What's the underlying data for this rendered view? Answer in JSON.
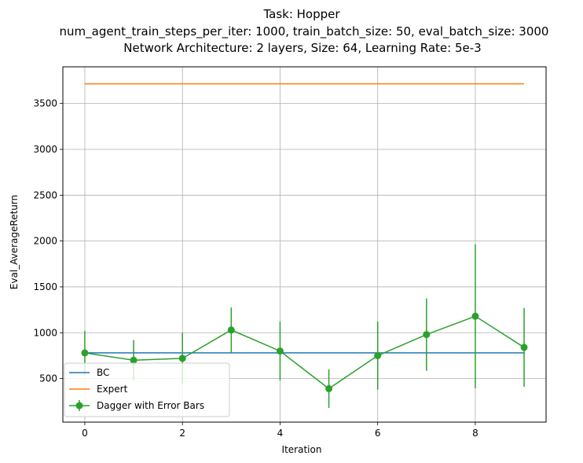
{
  "chart_data": {
    "type": "line",
    "title_lines": [
      "Task: Hopper",
      "num_agent_train_steps_per_iter: 1000, train_batch_size: 50, eval_batch_size: 3000",
      "Network Architecture: 2 layers, Size: 64, Learning Rate: 5e-3"
    ],
    "xlabel": "Iteration",
    "ylabel": "Eval_AverageReturn",
    "xlim": [
      -0.45,
      9.45
    ],
    "ylim": [
      25,
      3900
    ],
    "xticks": [
      0,
      2,
      4,
      6,
      8
    ],
    "yticks": [
      500,
      1000,
      1500,
      2000,
      2500,
      3000,
      3500
    ],
    "grid": true,
    "legend_position": "lower-left",
    "x": [
      0,
      1,
      2,
      3,
      4,
      5,
      6,
      7,
      8,
      9
    ],
    "series": [
      {
        "name": "BC",
        "color": "#1f77b4",
        "values": [
          780,
          780,
          780,
          780,
          780,
          780,
          780,
          780,
          780,
          780
        ]
      },
      {
        "name": "Expert",
        "color": "#ff7f0e",
        "values": [
          3715,
          3715,
          3715,
          3715,
          3715,
          3715,
          3715,
          3715,
          3715,
          3715
        ]
      },
      {
        "name": "Dagger with Error Bars",
        "color": "#2ca02c",
        "values": [
          780,
          700,
          720,
          1030,
          800,
          390,
          750,
          980,
          1180,
          840
        ],
        "errors": [
          240,
          220,
          280,
          245,
          320,
          210,
          370,
          395,
          785,
          430
        ]
      }
    ]
  }
}
